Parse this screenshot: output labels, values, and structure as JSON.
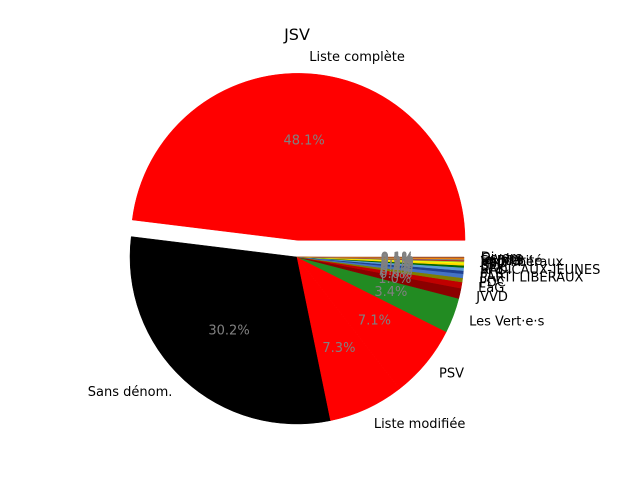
{
  "chart_data": {
    "type": "pie",
    "title": "JSV",
    "start_angle_deg": 0,
    "direction": "counterclockwise",
    "slices": [
      {
        "label": "Liste complète",
        "value": 48.1,
        "pct_label": "48.1%",
        "color": "#ff0000",
        "explode": 0.1
      },
      {
        "label": "Sans dénom.",
        "value": 30.2,
        "pct_label": "30.2%",
        "color": "#000000",
        "explode": 0
      },
      {
        "label": "Liste modifiée",
        "value": 7.3,
        "pct_label": "7.3%",
        "color": "#ff0000",
        "explode": 0
      },
      {
        "label": "PSV",
        "value": 7.1,
        "pct_label": "7.1%",
        "color": "#ff0000",
        "explode": 0
      },
      {
        "label": "Les Vert·e·s",
        "value": 3.4,
        "pct_label": "3.4%",
        "color": "#228b22",
        "explode": 0
      },
      {
        "label": "JVVD",
        "value": 1.0,
        "pct_label": "1.0%",
        "color": "#8b0000",
        "explode": 0
      },
      {
        "label": "EàG",
        "value": 0.6,
        "pct_label": "0.6%",
        "color": "#c00000",
        "explode": 0
      },
      {
        "label": "PDC",
        "value": 0.4,
        "pct_label": "0.4%",
        "color": "#7f7f00",
        "explode": 0
      },
      {
        "label": "PARTI LIBERAUX",
        "value": 0.4,
        "pct_label": "0.4%",
        "color": "#4472c4",
        "explode": 0
      },
      {
        "label": "PLR",
        "value": 0.3,
        "pct_label": "0.3%",
        "color": "#1f3f8f",
        "explode": 0
      },
      {
        "label": "RADICAUX-JEUNES",
        "value": 0.3,
        "pct_label": "0.3%",
        "color": "#5b9bd5",
        "explode": 0
      },
      {
        "label": "UDC",
        "value": 0.2,
        "pct_label": "0.2%",
        "color": "#006400",
        "explode": 0
      },
      {
        "label": "PEV",
        "value": 0.2,
        "pct_label": "0.2%",
        "color": "#ffd700",
        "explode": 0
      },
      {
        "label": "PBD",
        "value": 0.1,
        "pct_label": "0.1%",
        "color": "#ffff00",
        "explode": 0
      },
      {
        "label": "Vert'libéraux",
        "value": 0.1,
        "pct_label": "0.1%",
        "color": "#9acd32",
        "explode": 0
      },
      {
        "label": "Solidarité",
        "value": 0.1,
        "pct_label": "0.1%",
        "color": "#b22222",
        "explode": 0
      },
      {
        "label": "Jeunes",
        "value": 0.1,
        "pct_label": "0.1%",
        "color": "#808080",
        "explode": 0
      },
      {
        "label": "Centre",
        "value": 0.1,
        "pct_label": "0.1%",
        "color": "#ff8c00",
        "explode": 0
      },
      {
        "label": "Divers",
        "value": 0.1,
        "pct_label": "0.1%",
        "color": "#a0522d",
        "explode": 0
      }
    ]
  }
}
